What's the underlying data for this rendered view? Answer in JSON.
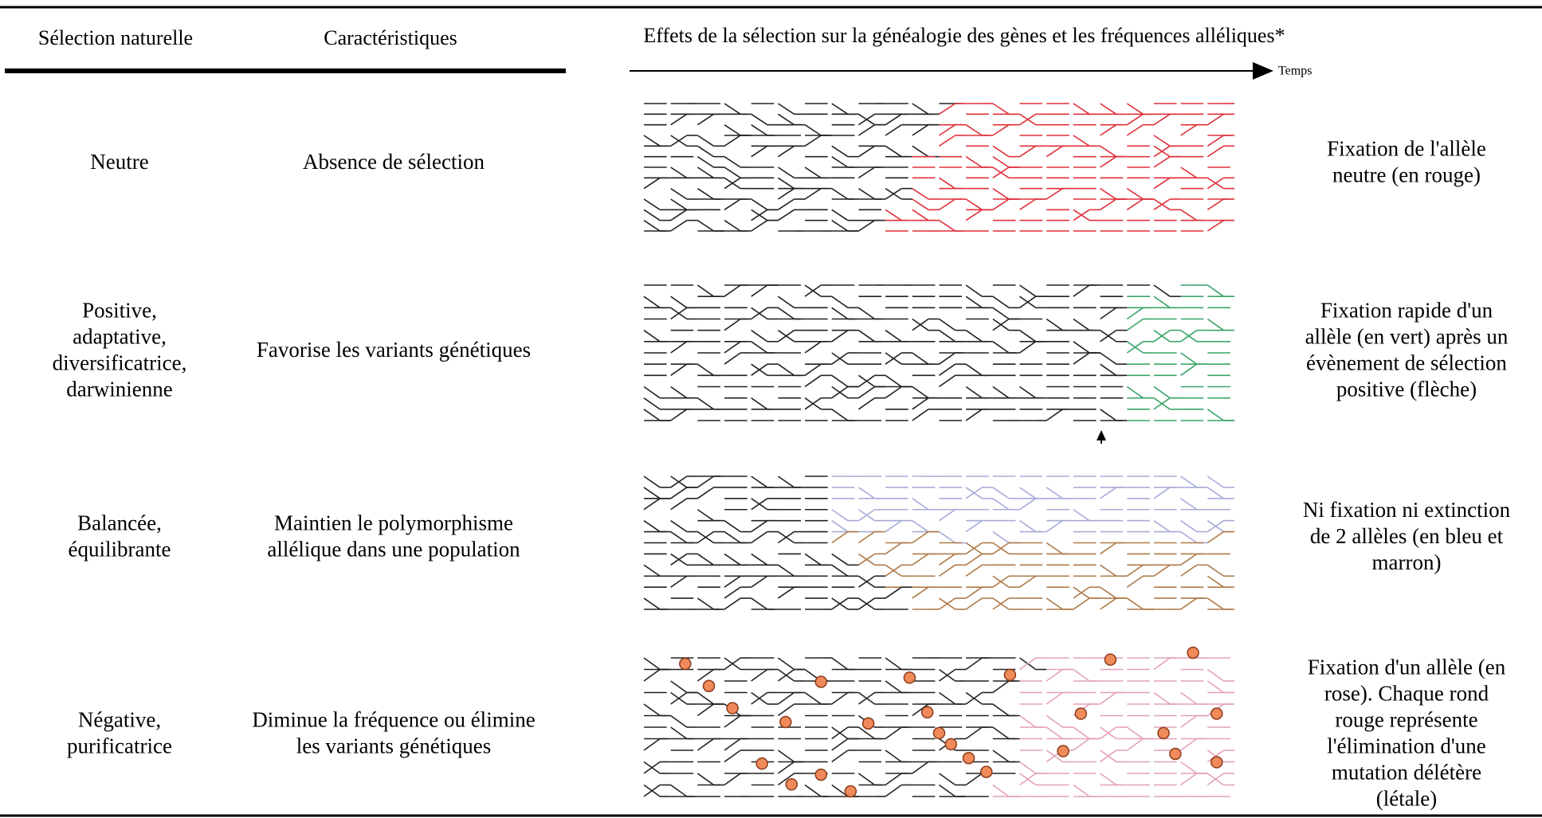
{
  "header": {
    "selection": "Sélection naturelle",
    "characteristics": "Caractéristiques",
    "effects": "Effets de la sélection sur la généalogie des gènes et les fréquences alléliques*",
    "time": "Temps"
  },
  "rows": [
    {
      "type": [
        "Neutre"
      ],
      "characteristic": [
        "Absence de sélection"
      ],
      "effect": [
        "Fixation de l'allèle",
        "neutre (en rouge)"
      ]
    },
    {
      "type": [
        "Positive,",
        "adaptative,",
        "diversificatrice,",
        "darwinienne"
      ],
      "characteristic": [
        "Favorise les variants génétiques"
      ],
      "effect": [
        "Fixation rapide d'un",
        "allèle (en vert) après un",
        "évènement de sélection",
        "positive (flèche)"
      ]
    },
    {
      "type": [
        "Balancée,",
        "équilibrante"
      ],
      "characteristic": [
        "Maintien le polymorphisme",
        "allélique dans une population"
      ],
      "effect": [
        "Ni fixation ni extinction",
        "de 2 allèles (en bleu et",
        "marron)"
      ]
    },
    {
      "type": [
        "Négative,",
        "purificatrice"
      ],
      "characteristic": [
        "Diminue la fréquence ou élimine",
        "les variants génétiques"
      ],
      "effect": [
        "Fixation d'un allèle (en",
        "rose). Chaque rond",
        "rouge représente",
        "l'élimination d'une",
        "mutation délétère",
        "(létale)"
      ]
    }
  ]
}
